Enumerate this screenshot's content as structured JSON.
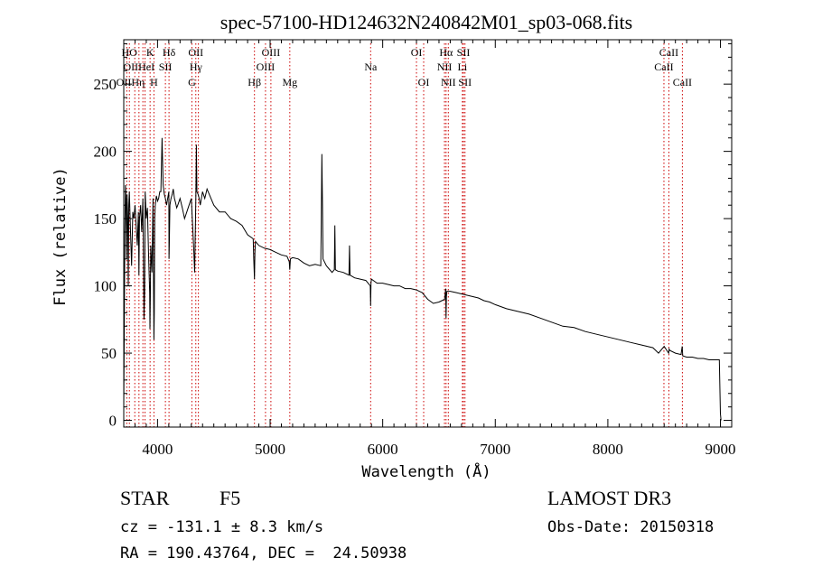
{
  "chart_data": {
    "type": "line",
    "title": "spec-57100-HD124632N240842M01_sp03-068.fits",
    "xlabel": "Wavelength (Å)",
    "ylabel": "Flux (relative)",
    "xlim": [
      3700,
      9100
    ],
    "ylim": [
      -5,
      283
    ],
    "xticks": [
      4000,
      5000,
      6000,
      7000,
      8000,
      9000
    ],
    "yticks": [
      0,
      50,
      100,
      150,
      200,
      250
    ],
    "grid": false,
    "series": [
      {
        "name": "Flux",
        "color": "#000000",
        "x": [
          3700,
          3705,
          3710,
          3715,
          3720,
          3725,
          3730,
          3735,
          3740,
          3745,
          3750,
          3760,
          3770,
          3780,
          3790,
          3800,
          3810,
          3820,
          3830,
          3835,
          3840,
          3850,
          3860,
          3870,
          3880,
          3885,
          3890,
          3900,
          3910,
          3920,
          3930,
          3933,
          3936,
          3940,
          3950,
          3960,
          3965,
          3968,
          3971,
          3975,
          3980,
          3990,
          4000,
          4010,
          4020,
          4030,
          4040,
          4050,
          4060,
          4070,
          4080,
          4090,
          4100,
          4102,
          4104,
          4110,
          4120,
          4130,
          4140,
          4150,
          4160,
          4170,
          4180,
          4200,
          4220,
          4240,
          4260,
          4280,
          4300,
          4320,
          4330,
          4340,
          4345,
          4350,
          4360,
          4370,
          4380,
          4400,
          4420,
          4440,
          4460,
          4480,
          4500,
          4550,
          4600,
          4650,
          4700,
          4750,
          4800,
          4850,
          4855,
          4861,
          4865,
          4870,
          4900,
          4950,
          5000,
          5050,
          5100,
          5150,
          5170,
          5175,
          5180,
          5200,
          5250,
          5300,
          5350,
          5400,
          5450,
          5455,
          5460,
          5465,
          5470,
          5500,
          5550,
          5570,
          5575,
          5580,
          5600,
          5650,
          5700,
          5705,
          5710,
          5750,
          5800,
          5850,
          5890,
          5893,
          5896,
          5900,
          5950,
          6000,
          6050,
          6100,
          6150,
          6200,
          6250,
          6300,
          6350,
          6400,
          6450,
          6500,
          6550,
          6560,
          6563,
          6566,
          6570,
          6600,
          6650,
          6700,
          6750,
          6800,
          6850,
          6900,
          6950,
          7000,
          7100,
          7200,
          7300,
          7400,
          7500,
          7600,
          7700,
          7800,
          7900,
          8000,
          8100,
          8200,
          8300,
          8400,
          8450,
          8500,
          8540,
          8545,
          8550,
          8600,
          8650,
          8660,
          8665,
          8700,
          8750,
          8800,
          8850,
          8900,
          8950,
          8990,
          9000,
          9005
        ],
        "y": [
          10,
          70,
          140,
          175,
          165,
          120,
          168,
          150,
          100,
          160,
          170,
          140,
          115,
          155,
          150,
          160,
          145,
          130,
          155,
          108,
          150,
          160,
          140,
          165,
          75,
          95,
          170,
          150,
          158,
          125,
          95,
          68,
          90,
          130,
          110,
          165,
          100,
          60,
          80,
          150,
          160,
          167,
          163,
          165,
          170,
          170,
          210,
          175,
          168,
          165,
          160,
          165,
          170,
          120,
          130,
          160,
          165,
          168,
          172,
          165,
          162,
          158,
          160,
          165,
          158,
          150,
          155,
          160,
          165,
          130,
          110,
          165,
          205,
          170,
          168,
          165,
          160,
          170,
          165,
          172,
          168,
          164,
          160,
          155,
          155,
          150,
          148,
          145,
          138,
          135,
          120,
          105,
          125,
          133,
          130,
          128,
          127,
          125,
          123,
          122,
          118,
          112,
          120,
          121,
          120,
          117,
          115,
          116,
          115,
          150,
          198,
          160,
          120,
          115,
          110,
          112,
          145,
          112,
          111,
          110,
          108,
          130,
          108,
          106,
          105,
          104,
          100,
          85,
          102,
          105,
          102,
          102,
          101,
          100,
          100,
          98,
          98,
          97,
          95,
          90,
          87,
          88,
          90,
          98,
          76,
          92,
          96,
          96,
          95,
          94,
          93,
          92,
          91,
          89,
          88,
          86,
          83,
          81,
          79,
          76,
          73,
          70,
          69,
          66,
          64,
          62,
          60,
          58,
          56,
          54,
          50,
          55,
          50,
          53,
          52,
          50,
          49,
          55,
          48,
          47,
          47,
          46,
          46,
          45,
          45,
          45,
          5,
          0
        ]
      }
    ],
    "line_labels": [
      {
        "text": "HO",
        "x": 3750,
        "row": 0
      },
      {
        "text": "K",
        "x": 3934,
        "row": 0
      },
      {
        "text": "Hδ",
        "x": 4102,
        "row": 0
      },
      {
        "text": "OII",
        "x": 4340,
        "row": 0
      },
      {
        "text": "OIII",
        "x": 5007,
        "row": 0
      },
      {
        "text": "OI",
        "x": 6300,
        "row": 0
      },
      {
        "text": "Hα",
        "x": 6563,
        "row": 0
      },
      {
        "text": "SII",
        "x": 6717,
        "row": 0
      },
      {
        "text": "CaII",
        "x": 8542,
        "row": 0
      },
      {
        "text": "OIIHeI",
        "x": 3835,
        "row": 1
      },
      {
        "text": "SII",
        "x": 4070,
        "row": 1
      },
      {
        "text": "Hγ",
        "x": 4341,
        "row": 1
      },
      {
        "text": "OIII",
        "x": 4959,
        "row": 1
      },
      {
        "text": "Na",
        "x": 5893,
        "row": 1
      },
      {
        "text": "NII",
        "x": 6549,
        "row": 1
      },
      {
        "text": "Li",
        "x": 6708,
        "row": 1
      },
      {
        "text": "CaII",
        "x": 8498,
        "row": 1
      },
      {
        "text": "OIIHη",
        "x": 3760,
        "row": 2
      },
      {
        "text": "H",
        "x": 3968,
        "row": 2
      },
      {
        "text": "G",
        "x": 4305,
        "row": 2
      },
      {
        "text": "Hβ",
        "x": 4861,
        "row": 2
      },
      {
        "text": "Mg",
        "x": 5175,
        "row": 2
      },
      {
        "text": "OI",
        "x": 6364,
        "row": 2
      },
      {
        "text": "NII",
        "x": 6583,
        "row": 2
      },
      {
        "text": "SII",
        "x": 6731,
        "row": 2
      },
      {
        "text": "CaII",
        "x": 8662,
        "row": 2
      }
    ],
    "line_markers": [
      3727,
      3750,
      3798,
      3835,
      3870,
      3889,
      3934,
      3968,
      4070,
      4102,
      4305,
      4340,
      4363,
      4861,
      4959,
      5007,
      5175,
      5893,
      6300,
      6364,
      6549,
      6563,
      6583,
      6708,
      6717,
      6731,
      8498,
      8542,
      8662
    ],
    "marker_color": "#cc0000"
  },
  "info": {
    "object_class": "STAR",
    "subclass": "F5",
    "survey": "LAMOST DR3",
    "redshift_text": "cz = -131.1 ± 8.3 km/s",
    "obs_date_text": "Obs-Date: 20150318",
    "coords_text": "RA = 190.43764, DEC =  24.50938"
  }
}
